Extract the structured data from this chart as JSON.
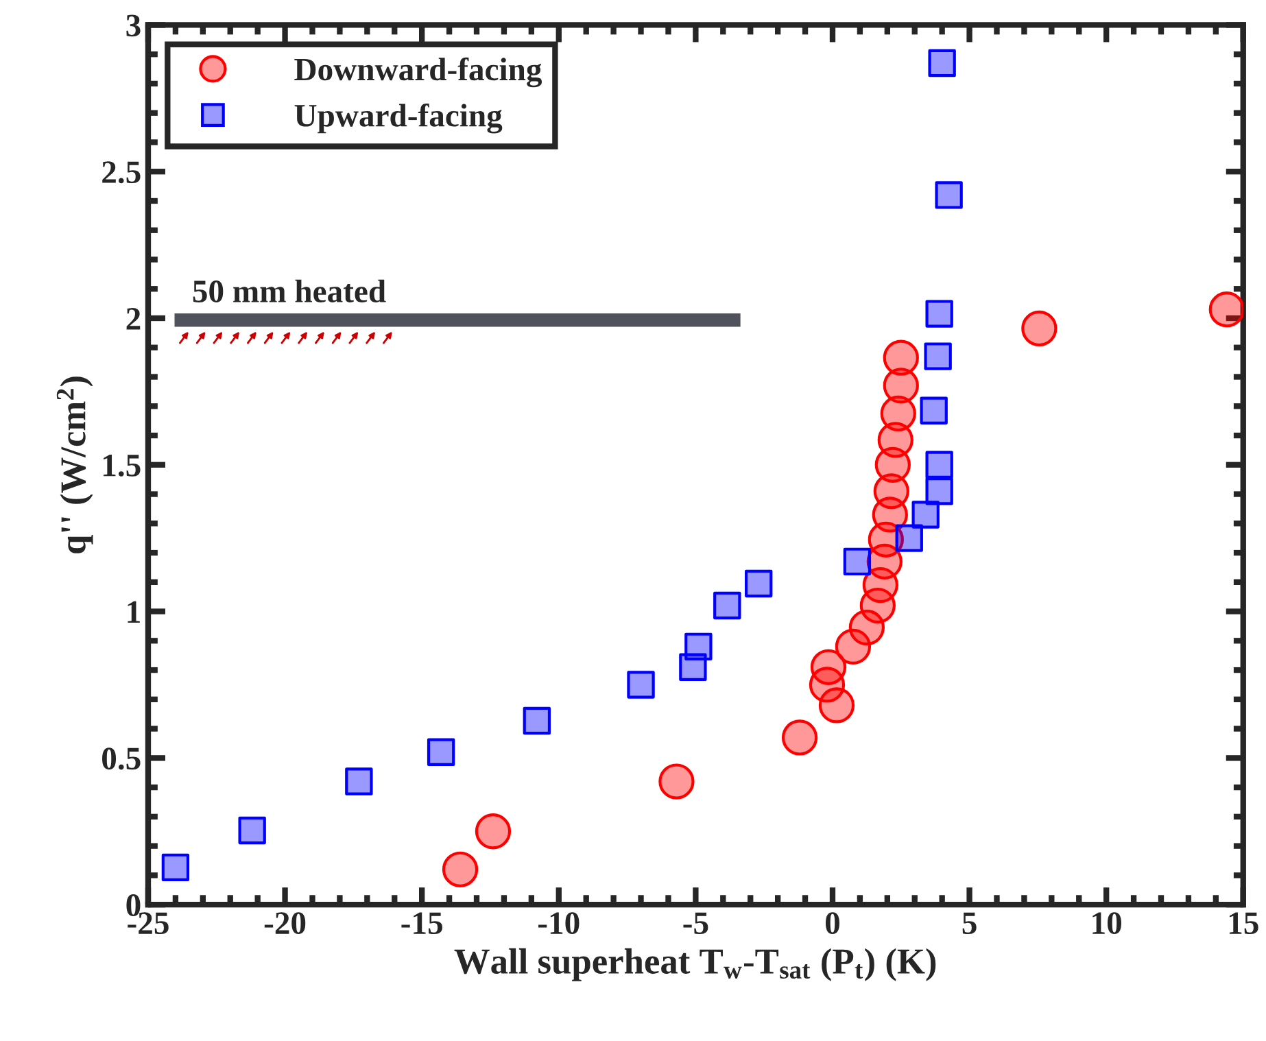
{
  "chart_data": {
    "type": "scatter",
    "xlabel": "Wall superheat T$_{w}$-T$_{sat}$ (P$_{t}$) (K)",
    "ylabel": "q'' (W/cm$^{2}$)",
    "xlim": [
      -25,
      15
    ],
    "xticks": [
      -25,
      -20,
      -15,
      -10,
      -5,
      0,
      5,
      10,
      15
    ],
    "ylim": [
      0,
      3
    ],
    "yticks": [
      0,
      0.5,
      1,
      1.5,
      2,
      2.5,
      3
    ],
    "grid": false,
    "legend": "top left",
    "annotations": [
      "50 mm heated"
    ],
    "series": [
      {
        "name": "Downward-facing",
        "color": "#ff0000",
        "marker": "circle",
        "x": [
          -13.6,
          -12.4,
          -5.7,
          -1.2,
          0.15,
          -0.2,
          -0.15,
          0.75,
          1.25,
          1.65,
          1.75,
          1.9,
          1.95,
          2.1,
          2.15,
          2.2,
          2.3,
          2.4,
          2.5,
          2.5,
          7.55,
          14.4
        ],
        "values": [
          0.12,
          0.25,
          0.42,
          0.57,
          0.68,
          0.75,
          0.81,
          0.88,
          0.945,
          1.02,
          1.09,
          1.17,
          1.245,
          1.33,
          1.41,
          1.5,
          1.585,
          1.675,
          1.77,
          1.865,
          1.965,
          2.03
        ]
      },
      {
        "name": "Upward-facing",
        "color": "#0000ff",
        "marker": "square",
        "x": [
          -24.0,
          -21.2,
          -17.3,
          -14.3,
          -10.8,
          -7.0,
          -5.1,
          -4.9,
          -3.85,
          -2.7,
          0.9,
          2.8,
          3.4,
          3.9,
          3.9,
          3.7,
          3.85,
          3.9,
          4.25,
          4.0
        ],
        "values": [
          0.127,
          0.253,
          0.42,
          0.52,
          0.627,
          0.75,
          0.81,
          0.88,
          1.02,
          1.095,
          1.17,
          1.25,
          1.33,
          1.41,
          1.5,
          1.685,
          1.87,
          2.015,
          2.42,
          2.87
        ]
      }
    ]
  }
}
